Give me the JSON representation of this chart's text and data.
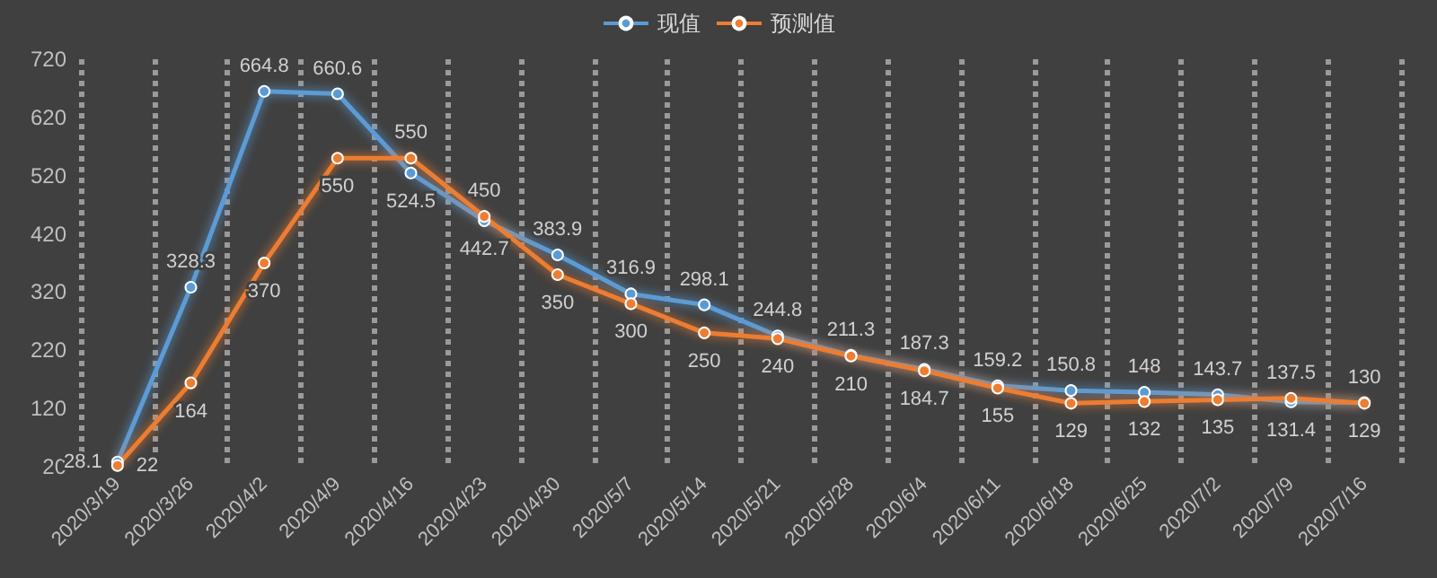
{
  "chart_data": {
    "type": "line",
    "categories": [
      "2020/3/19",
      "2020/3/26",
      "2020/4/2",
      "2020/4/9",
      "2020/4/16",
      "2020/4/23",
      "2020/4/30",
      "2020/5/7",
      "2020/5/14",
      "2020/5/21",
      "2020/5/28",
      "2020/6/4",
      "2020/6/11",
      "2020/6/18",
      "2020/6/25",
      "2020/7/2",
      "2020/7/9",
      "2020/7/16"
    ],
    "series": [
      {
        "name": "现值",
        "color": "#5b9bd5",
        "values": [
          28.1,
          328.3,
          664.8,
          660.6,
          524.5,
          442.7,
          383.9,
          316.9,
          298.1,
          244.8,
          211.3,
          187.3,
          159.2,
          150.8,
          148,
          143.7,
          131.4,
          130
        ]
      },
      {
        "name": "预测值",
        "color": "#ed7d31",
        "values": [
          22,
          164,
          370,
          550,
          550,
          450,
          350,
          300,
          250,
          240,
          210,
          184.7,
          155,
          129,
          132,
          135,
          137.5,
          129
        ]
      }
    ],
    "ylim": [
      20,
      720
    ],
    "yticks": [
      20,
      120,
      220,
      320,
      420,
      520,
      620,
      720
    ],
    "grid": "x",
    "legend": "top",
    "marker": "circle",
    "data_labels": true
  }
}
